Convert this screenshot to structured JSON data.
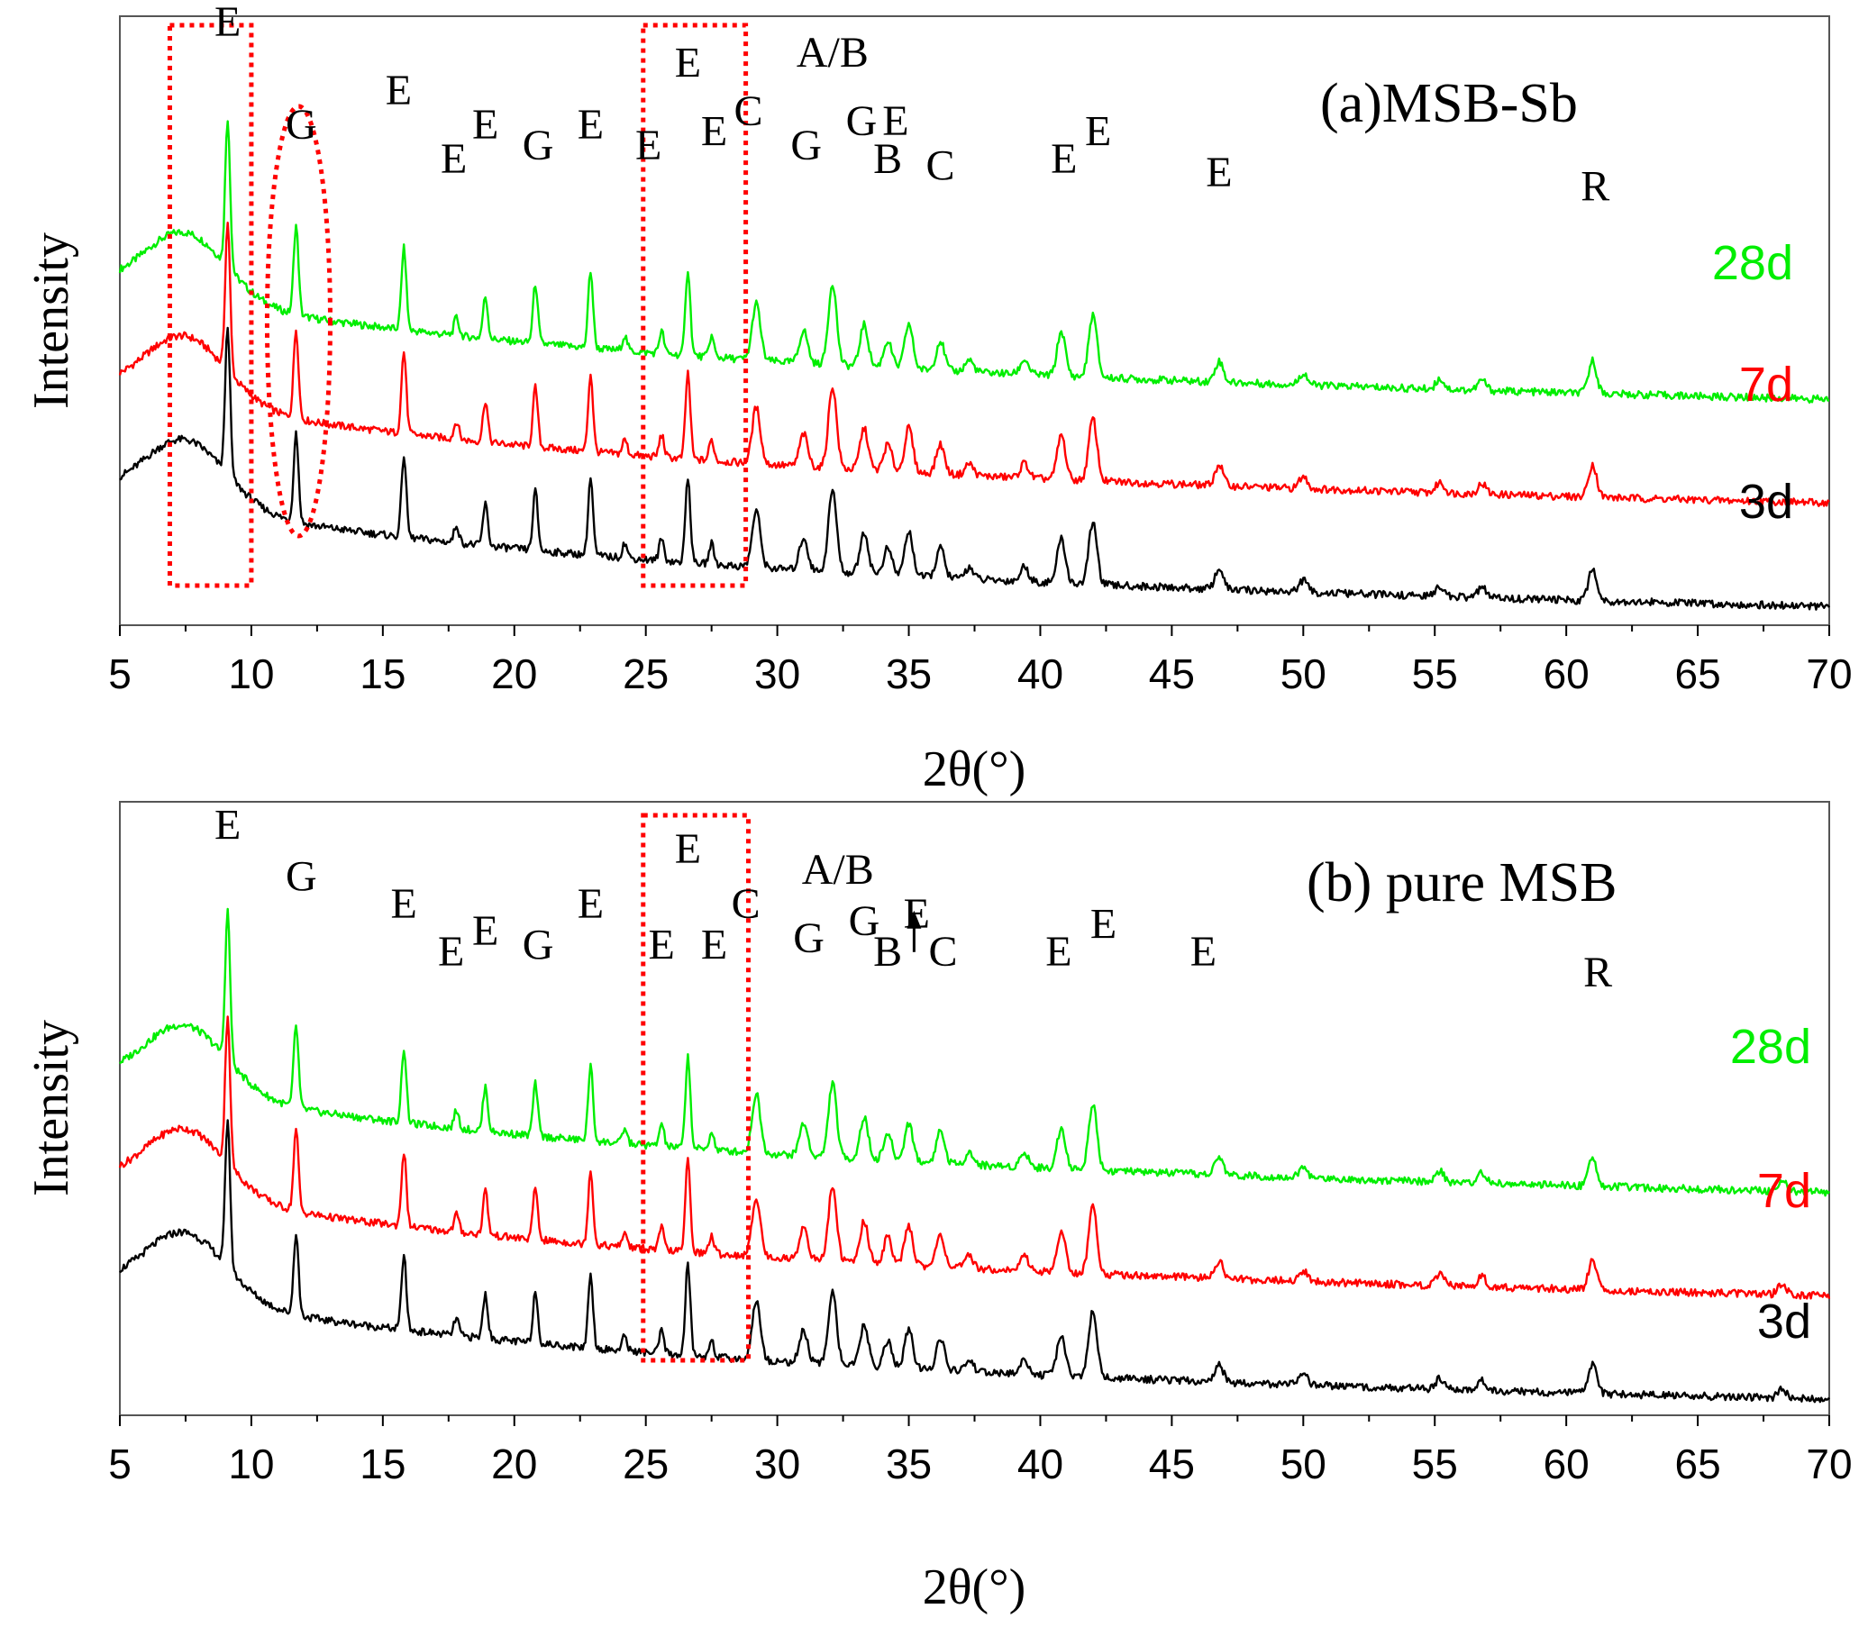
{
  "chart_data": [
    {
      "type": "line",
      "panel": "a",
      "title": "(a)MSB-Sb",
      "xlabel": "2θ(°)",
      "ylabel": "Intensity",
      "xlim": [
        5,
        70
      ],
      "xticks": [
        5,
        10,
        15,
        20,
        25,
        30,
        35,
        40,
        45,
        50,
        55,
        60,
        65,
        70
      ],
      "series": [
        {
          "name": "28d",
          "color": "#00ee00",
          "offset": 2.0
        },
        {
          "name": "7d",
          "color": "#ff0000",
          "offset": 1.0
        },
        {
          "name": "3d",
          "color": "#000000",
          "offset": 0.0
        }
      ],
      "peaks": [
        {
          "two_theta": 9.1,
          "height": 1.0
        },
        {
          "two_theta": 11.7,
          "height": 0.6
        },
        {
          "two_theta": 15.8,
          "height": 0.55
        },
        {
          "two_theta": 17.8,
          "height": 0.12
        },
        {
          "two_theta": 18.9,
          "height": 0.28
        },
        {
          "two_theta": 20.8,
          "height": 0.4
        },
        {
          "two_theta": 22.9,
          "height": 0.52
        },
        {
          "two_theta": 24.2,
          "height": 0.1
        },
        {
          "two_theta": 25.6,
          "height": 0.15
        },
        {
          "two_theta": 26.6,
          "height": 0.58
        },
        {
          "two_theta": 27.5,
          "height": 0.14
        },
        {
          "two_theta": 29.2,
          "height": 0.38
        },
        {
          "two_theta": 31.0,
          "height": 0.22
        },
        {
          "two_theta": 32.1,
          "height": 0.55
        },
        {
          "two_theta": 33.3,
          "height": 0.28
        },
        {
          "two_theta": 34.2,
          "height": 0.18
        },
        {
          "two_theta": 35.0,
          "height": 0.3
        },
        {
          "two_theta": 36.2,
          "height": 0.2
        },
        {
          "two_theta": 37.3,
          "height": 0.08
        },
        {
          "two_theta": 39.4,
          "height": 0.1
        },
        {
          "two_theta": 40.8,
          "height": 0.3
        },
        {
          "two_theta": 42.0,
          "height": 0.42
        },
        {
          "two_theta": 46.8,
          "height": 0.14
        },
        {
          "two_theta": 50.0,
          "height": 0.08
        },
        {
          "two_theta": 55.2,
          "height": 0.07
        },
        {
          "two_theta": 56.8,
          "height": 0.07
        },
        {
          "two_theta": 61.0,
          "height": 0.22
        }
      ],
      "peak_labels": [
        {
          "text": "E",
          "two_theta": 9.1,
          "row": 0
        },
        {
          "text": "G",
          "two_theta": 11.9,
          "row": 3
        },
        {
          "text": "E",
          "two_theta": 15.6,
          "row": 2
        },
        {
          "text": "E",
          "two_theta": 17.7,
          "row": 4
        },
        {
          "text": "E",
          "two_theta": 18.9,
          "row": 3
        },
        {
          "text": "G",
          "two_theta": 20.9,
          "row": 3.6
        },
        {
          "text": "E",
          "two_theta": 22.9,
          "row": 3
        },
        {
          "text": "E",
          "two_theta": 25.1,
          "row": 3.6
        },
        {
          "text": "E",
          "two_theta": 26.6,
          "row": 1.2
        },
        {
          "text": "E",
          "two_theta": 27.6,
          "row": 3.2
        },
        {
          "text": "C",
          "two_theta": 28.9,
          "row": 2.6
        },
        {
          "text": "A/B",
          "two_theta": 32.1,
          "row": 0.9
        },
        {
          "text": "G",
          "two_theta": 31.1,
          "row": 3.6
        },
        {
          "text": "G",
          "two_theta": 33.2,
          "row": 2.9
        },
        {
          "text": "E",
          "two_theta": 34.5,
          "row": 2.9
        },
        {
          "text": "B",
          "two_theta": 34.2,
          "row": 4
        },
        {
          "text": "C",
          "two_theta": 36.2,
          "row": 4.2
        },
        {
          "text": "E",
          "two_theta": 40.9,
          "row": 4
        },
        {
          "text": "E",
          "two_theta": 42.2,
          "row": 3.2
        },
        {
          "text": "E",
          "two_theta": 46.8,
          "row": 4.4
        },
        {
          "text": "R",
          "two_theta": 61.1,
          "row": 4.8
        }
      ],
      "highlights": [
        {
          "shape": "rect",
          "x_range": [
            6.9,
            10.0
          ]
        },
        {
          "shape": "ellipse",
          "x_range": [
            10.6,
            13.0
          ]
        },
        {
          "shape": "rect",
          "x_range": [
            24.9,
            28.8
          ]
        }
      ]
    },
    {
      "type": "line",
      "panel": "b",
      "title": "(b) pure MSB",
      "xlabel": "2θ(°)",
      "ylabel": "Intensity",
      "xlim": [
        5,
        70
      ],
      "xticks": [
        5,
        10,
        15,
        20,
        25,
        30,
        35,
        40,
        45,
        50,
        55,
        60,
        65,
        70
      ],
      "series": [
        {
          "name": "28d",
          "color": "#00ee00",
          "offset": 2.0
        },
        {
          "name": "7d",
          "color": "#ff0000",
          "offset": 1.0
        },
        {
          "name": "3d",
          "color": "#000000",
          "offset": 0.0
        }
      ],
      "peaks": [
        {
          "two_theta": 9.1,
          "height": 1.0
        },
        {
          "two_theta": 11.7,
          "height": 0.55
        },
        {
          "two_theta": 15.8,
          "height": 0.5
        },
        {
          "two_theta": 17.8,
          "height": 0.12
        },
        {
          "two_theta": 18.9,
          "height": 0.3
        },
        {
          "two_theta": 20.8,
          "height": 0.35
        },
        {
          "two_theta": 22.9,
          "height": 0.5
        },
        {
          "two_theta": 24.2,
          "height": 0.1
        },
        {
          "two_theta": 25.6,
          "height": 0.15
        },
        {
          "two_theta": 26.6,
          "height": 0.62
        },
        {
          "two_theta": 27.5,
          "height": 0.12
        },
        {
          "two_theta": 29.2,
          "height": 0.4
        },
        {
          "two_theta": 31.0,
          "height": 0.22
        },
        {
          "two_theta": 32.1,
          "height": 0.5
        },
        {
          "two_theta": 33.3,
          "height": 0.28
        },
        {
          "two_theta": 34.2,
          "height": 0.18
        },
        {
          "two_theta": 35.0,
          "height": 0.26
        },
        {
          "two_theta": 36.2,
          "height": 0.22
        },
        {
          "two_theta": 37.3,
          "height": 0.08
        },
        {
          "two_theta": 39.4,
          "height": 0.1
        },
        {
          "two_theta": 40.8,
          "height": 0.28
        },
        {
          "two_theta": 42.0,
          "height": 0.45
        },
        {
          "two_theta": 46.8,
          "height": 0.12
        },
        {
          "two_theta": 50.0,
          "height": 0.07
        },
        {
          "two_theta": 55.2,
          "height": 0.07
        },
        {
          "two_theta": 56.8,
          "height": 0.07
        },
        {
          "two_theta": 61.0,
          "height": 0.2
        },
        {
          "two_theta": 68.2,
          "height": 0.07
        }
      ],
      "peak_labels": [
        {
          "text": "E",
          "two_theta": 9.1,
          "row": 0.3
        },
        {
          "text": "G",
          "two_theta": 11.9,
          "row": 1.8
        },
        {
          "text": "E",
          "two_theta": 15.8,
          "row": 2.6
        },
        {
          "text": "E",
          "two_theta": 17.6,
          "row": 4
        },
        {
          "text": "E",
          "two_theta": 18.9,
          "row": 3.4
        },
        {
          "text": "G",
          "two_theta": 20.9,
          "row": 3.8
        },
        {
          "text": "E",
          "two_theta": 22.9,
          "row": 2.6
        },
        {
          "text": "E",
          "two_theta": 26.6,
          "row": 1.0
        },
        {
          "text": "E",
          "two_theta": 25.6,
          "row": 3.8
        },
        {
          "text": "E",
          "two_theta": 27.6,
          "row": 3.8
        },
        {
          "text": "C",
          "two_theta": 28.8,
          "row": 2.6
        },
        {
          "text": "A/B",
          "two_theta": 32.3,
          "row": 1.6
        },
        {
          "text": "G",
          "two_theta": 31.2,
          "row": 3.6
        },
        {
          "text": "G",
          "two_theta": 33.3,
          "row": 3.1
        },
        {
          "text": "B",
          "two_theta": 34.2,
          "row": 4
        },
        {
          "text": "E",
          "two_theta": 35.3,
          "row": 2.9
        },
        {
          "text": "C",
          "two_theta": 36.3,
          "row": 4
        },
        {
          "text": "E",
          "two_theta": 40.7,
          "row": 4
        },
        {
          "text": "E",
          "two_theta": 42.4,
          "row": 3.2
        },
        {
          "text": "E",
          "two_theta": 46.2,
          "row": 4
        },
        {
          "text": "R",
          "two_theta": 61.2,
          "row": 4.6
        }
      ],
      "arrows": [
        {
          "two_theta": 35.2,
          "direction": "up"
        }
      ],
      "highlights": [
        {
          "shape": "rect",
          "x_range": [
            24.9,
            28.9
          ]
        }
      ]
    }
  ]
}
